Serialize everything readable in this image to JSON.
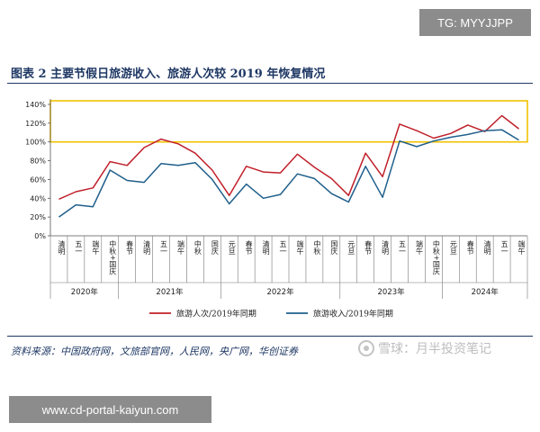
{
  "header": {
    "badge": "TG: MYYJJPP",
    "figure_title": "图表 2   主要节假日旅游收入、旅游人次较 2019 年恢复情况"
  },
  "footer": {
    "source": "资料来源：中国政府网，文旅部官网，人民网，央广网，华创证券",
    "watermark": "雪球：月半投资笔记",
    "url_badge": "www.cd-portal-kaiyun.com"
  },
  "chart_data": {
    "type": "line",
    "title": "",
    "xlabel": "",
    "ylabel": "",
    "ylim": [
      0,
      140
    ],
    "yticks": [
      "0%",
      "20%",
      "40%",
      "60%",
      "80%",
      "100%",
      "120%",
      "140%"
    ],
    "grid": false,
    "legend_position": "bottom",
    "highlight_band": {
      "from": 100,
      "to": 140,
      "color": "#f2c200"
    },
    "categories": [
      "清明",
      "五一",
      "端午",
      "中秋+国庆",
      "春节",
      "清明",
      "五一",
      "端午",
      "中秋",
      "国庆",
      "元旦",
      "春节",
      "清明",
      "五一",
      "端午",
      "中秋",
      "国庆",
      "元旦",
      "春节",
      "清明",
      "五一",
      "端午",
      "中秋+国庆",
      "元旦",
      "春节",
      "清明",
      "五一",
      "端午"
    ],
    "years": [
      {
        "label": "2020年",
        "start": 0,
        "end": 3
      },
      {
        "label": "2021年",
        "start": 4,
        "end": 9
      },
      {
        "label": "2022年",
        "start": 10,
        "end": 16
      },
      {
        "label": "2023年",
        "start": 17,
        "end": 22
      },
      {
        "label": "2024年",
        "start": 23,
        "end": 27
      }
    ],
    "series": [
      {
        "name": "旅游人次/2019年同期",
        "color": "#c0202a",
        "values": [
          39,
          47,
          51,
          79,
          75,
          94,
          103,
          98,
          88,
          70,
          43,
          74,
          68,
          67,
          87,
          73,
          61,
          43,
          88,
          63,
          119,
          112,
          104,
          109,
          118,
          111,
          128,
          114
        ]
      },
      {
        "name": "旅游收入/2019年同期",
        "color": "#1f5f8b",
        "values": [
          20,
          33,
          31,
          70,
          59,
          57,
          77,
          75,
          78,
          60,
          34,
          55,
          40,
          44,
          66,
          61,
          45,
          36,
          74,
          41,
          101,
          95,
          101,
          105,
          108,
          112,
          113,
          102
        ]
      }
    ]
  }
}
